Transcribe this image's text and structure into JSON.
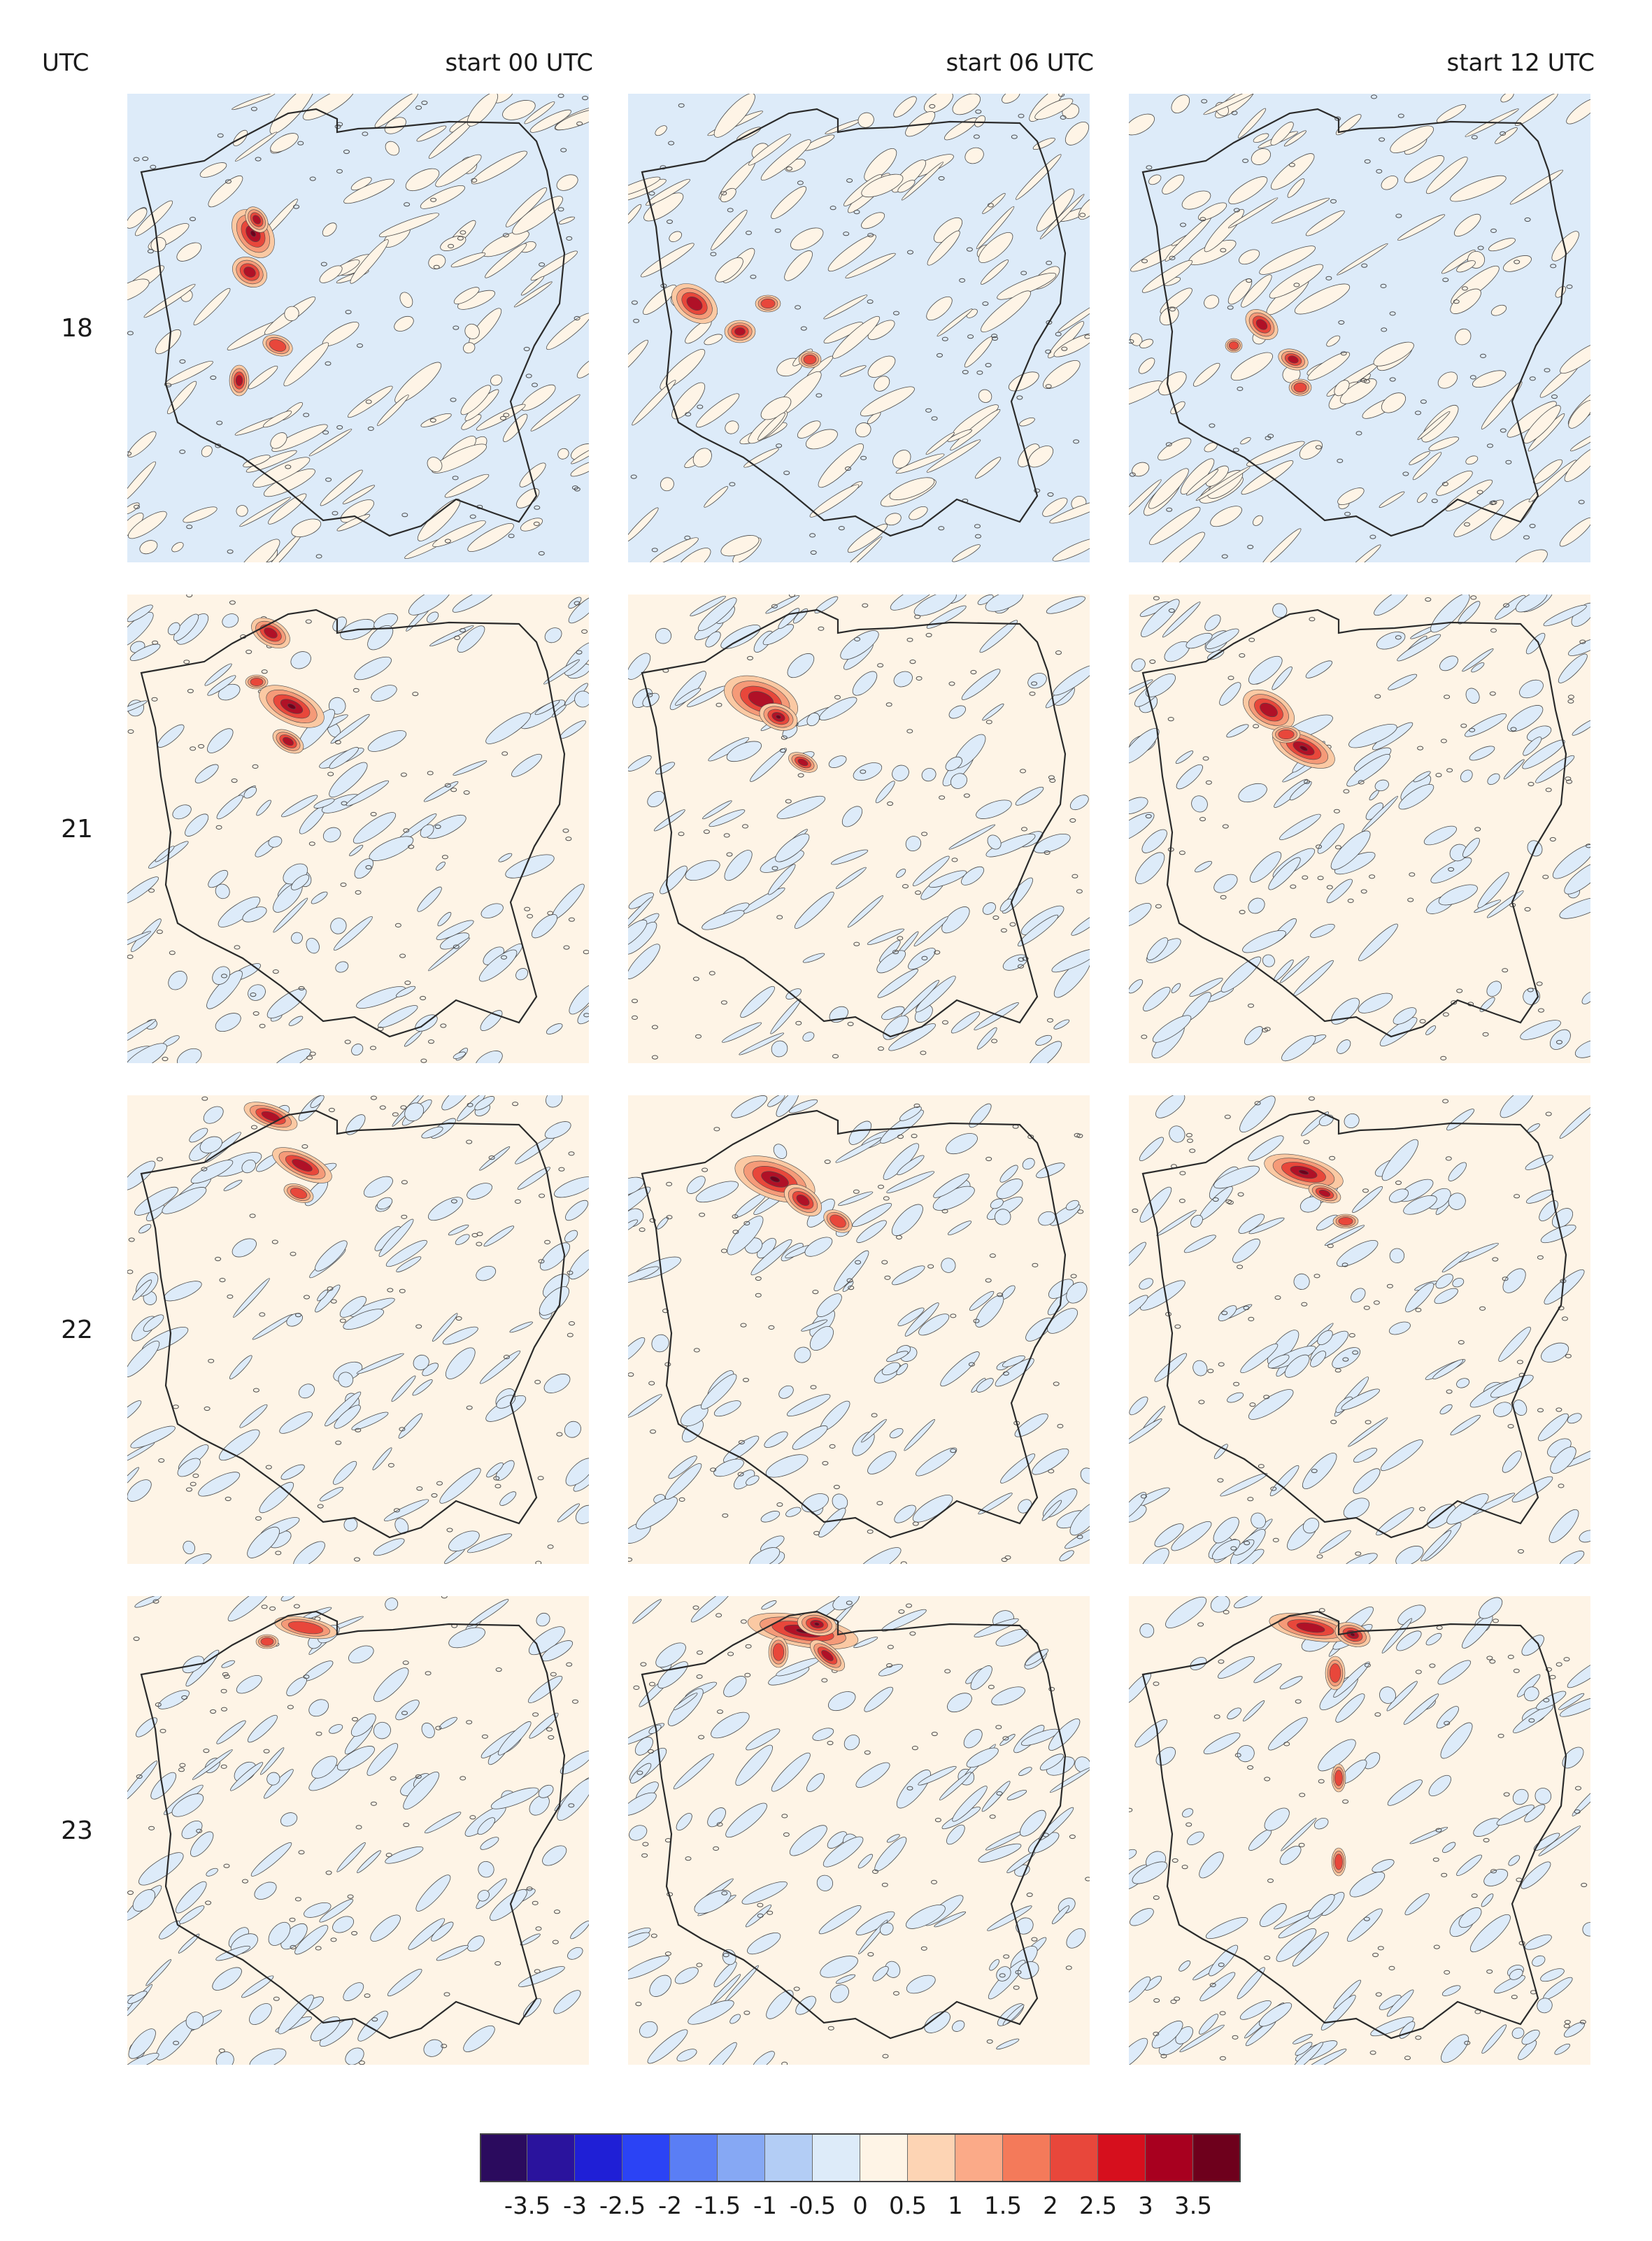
{
  "header": {
    "utc_label": "UTC",
    "columns": [
      "start 00 UTC",
      "start 06 UTC",
      "start 12 UTC"
    ]
  },
  "rows": [
    "18",
    "21",
    "22",
    "23"
  ],
  "map": {
    "land_fill": "#fef4e6",
    "sea_fill": "#ddebf9",
    "contour_color": "#4a4a4a",
    "border_color": "#2b2b2b",
    "high_colors": [
      "#fbc9a3",
      "#f59a78",
      "#e8473b",
      "#b01127",
      "#6e001c"
    ],
    "low_color": "#a9c8ef"
  },
  "colorbar": {
    "colors": [
      "#2b0b5e",
      "#2a139d",
      "#1f1fd6",
      "#2b43f5",
      "#5a7ef5",
      "#86a8f4",
      "#b3cdf5",
      "#ddebf9",
      "#fef4e6",
      "#fdd4b4",
      "#fbaa88",
      "#f47a5a",
      "#e8473b",
      "#d60f1d",
      "#a8001f",
      "#6e001c"
    ],
    "labels": [
      "-3.5",
      "-3",
      "-2.5",
      "-2",
      "-1.5",
      "-1",
      "-0.5",
      "0",
      "0.5",
      "1",
      "1.5",
      "2",
      "2.5",
      "3",
      "3.5"
    ]
  }
}
